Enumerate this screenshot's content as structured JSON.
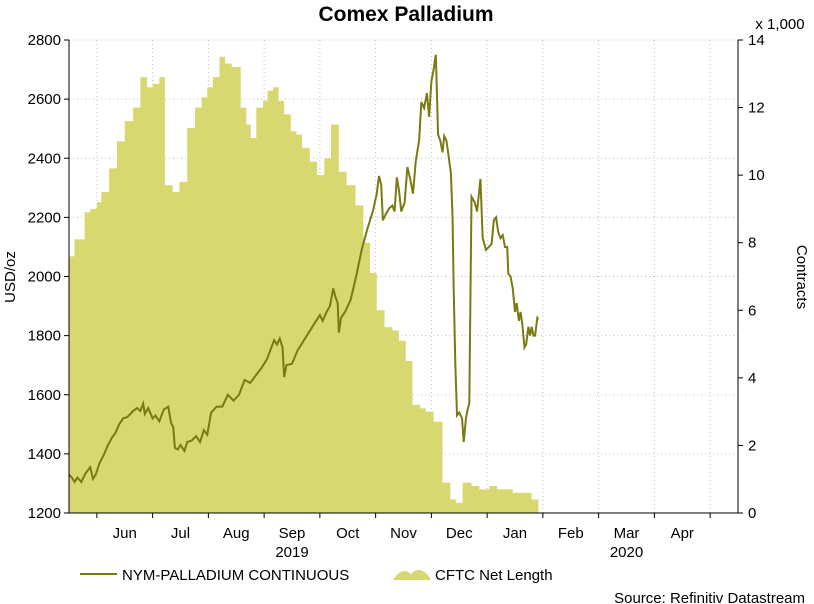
{
  "colors": {
    "area": "#d8d870",
    "line": "#7a7a12",
    "grid": "#bdbdbd",
    "axis": "#000000"
  },
  "chart_data": {
    "type": "line+area",
    "title": "Comex Palladium",
    "left_axis": {
      "label": "USD/oz",
      "range": [
        1200,
        2800
      ],
      "ticks": [
        1200,
        1400,
        1600,
        1800,
        2000,
        2200,
        2400,
        2600,
        2800
      ]
    },
    "right_axis": {
      "label": "Contracts",
      "multiplier_label": "x 1,000",
      "range": [
        0,
        14
      ],
      "ticks": [
        0,
        2,
        4,
        6,
        8,
        10,
        12,
        14
      ]
    },
    "x_axis": {
      "month_labels": [
        {
          "label": "Jun",
          "t": 2
        },
        {
          "label": "Jul",
          "t": 3
        },
        {
          "label": "Aug",
          "t": 4
        },
        {
          "label": "Sep",
          "t": 5
        },
        {
          "label": "Oct",
          "t": 6
        },
        {
          "label": "Nov",
          "t": 7
        },
        {
          "label": "Dec",
          "t": 8
        },
        {
          "label": "Jan",
          "t": 9
        },
        {
          "label": "Feb",
          "t": 10
        },
        {
          "label": "Mar",
          "t": 11
        },
        {
          "label": "Apr",
          "t": 12
        }
      ],
      "month_boundaries": [
        1.5,
        2.5,
        3.5,
        4.5,
        5.5,
        6.5,
        7.5,
        8.5,
        9.5,
        10.5,
        11.5,
        12.5
      ],
      "year_labels": [
        {
          "label": "2019",
          "t": 5
        },
        {
          "label": "2020",
          "t": 11
        }
      ],
      "range": [
        1.0,
        13.0
      ]
    },
    "series": [
      {
        "name": "NYM-PALLADIUM CONTINUOUS",
        "axis": "left",
        "style": "line",
        "points": [
          [
            1.0,
            1330
          ],
          [
            1.05,
            1320
          ],
          [
            1.1,
            1305
          ],
          [
            1.15,
            1320
          ],
          [
            1.22,
            1305
          ],
          [
            1.3,
            1335
          ],
          [
            1.38,
            1355
          ],
          [
            1.43,
            1315
          ],
          [
            1.48,
            1330
          ],
          [
            1.55,
            1370
          ],
          [
            1.62,
            1395
          ],
          [
            1.7,
            1430
          ],
          [
            1.77,
            1455
          ],
          [
            1.83,
            1470
          ],
          [
            1.9,
            1500
          ],
          [
            1.97,
            1520
          ],
          [
            2.05,
            1525
          ],
          [
            2.15,
            1545
          ],
          [
            2.22,
            1555
          ],
          [
            2.28,
            1545
          ],
          [
            2.33,
            1570
          ],
          [
            2.36,
            1535
          ],
          [
            2.42,
            1555
          ],
          [
            2.5,
            1520
          ],
          [
            2.55,
            1530
          ],
          [
            2.62,
            1510
          ],
          [
            2.7,
            1550
          ],
          [
            2.78,
            1560
          ],
          [
            2.83,
            1505
          ],
          [
            2.87,
            1490
          ],
          [
            2.9,
            1420
          ],
          [
            2.95,
            1415
          ],
          [
            3.0,
            1430
          ],
          [
            3.07,
            1410
          ],
          [
            3.12,
            1440
          ],
          [
            3.2,
            1445
          ],
          [
            3.28,
            1460
          ],
          [
            3.35,
            1440
          ],
          [
            3.42,
            1480
          ],
          [
            3.48,
            1465
          ],
          [
            3.55,
            1540
          ],
          [
            3.65,
            1560
          ],
          [
            3.75,
            1560
          ],
          [
            3.85,
            1600
          ],
          [
            3.95,
            1580
          ],
          [
            4.05,
            1600
          ],
          [
            4.15,
            1650
          ],
          [
            4.25,
            1640
          ],
          [
            4.35,
            1665
          ],
          [
            4.45,
            1690
          ],
          [
            4.55,
            1720
          ],
          [
            4.62,
            1755
          ],
          [
            4.68,
            1785
          ],
          [
            4.73,
            1770
          ],
          [
            4.78,
            1790
          ],
          [
            4.83,
            1760
          ],
          [
            4.86,
            1660
          ],
          [
            4.9,
            1700
          ],
          [
            5.0,
            1705
          ],
          [
            5.1,
            1750
          ],
          [
            5.2,
            1780
          ],
          [
            5.3,
            1810
          ],
          [
            5.4,
            1840
          ],
          [
            5.5,
            1870
          ],
          [
            5.55,
            1850
          ],
          [
            5.62,
            1880
          ],
          [
            5.68,
            1900
          ],
          [
            5.74,
            1960
          ],
          [
            5.78,
            1930
          ],
          [
            5.82,
            1910
          ],
          [
            5.84,
            1810
          ],
          [
            5.88,
            1860
          ],
          [
            5.95,
            1880
          ],
          [
            6.05,
            1920
          ],
          [
            6.15,
            2000
          ],
          [
            6.25,
            2090
          ],
          [
            6.35,
            2160
          ],
          [
            6.45,
            2220
          ],
          [
            6.52,
            2280
          ],
          [
            6.56,
            2340
          ],
          [
            6.6,
            2310
          ],
          [
            6.63,
            2190
          ],
          [
            6.68,
            2210
          ],
          [
            6.74,
            2230
          ],
          [
            6.8,
            2240
          ],
          [
            6.84,
            2220
          ],
          [
            6.88,
            2335
          ],
          [
            6.92,
            2290
          ],
          [
            6.96,
            2220
          ],
          [
            7.02,
            2250
          ],
          [
            7.07,
            2370
          ],
          [
            7.12,
            2330
          ],
          [
            7.17,
            2280
          ],
          [
            7.22,
            2390
          ],
          [
            7.28,
            2460
          ],
          [
            7.32,
            2590
          ],
          [
            7.37,
            2570
          ],
          [
            7.42,
            2620
          ],
          [
            7.46,
            2540
          ],
          [
            7.5,
            2660
          ],
          [
            7.54,
            2700
          ],
          [
            7.58,
            2750
          ],
          [
            7.62,
            2480
          ],
          [
            7.66,
            2460
          ],
          [
            7.7,
            2420
          ],
          [
            7.73,
            2475
          ],
          [
            7.77,
            2460
          ],
          [
            7.8,
            2420
          ],
          [
            7.85,
            2350
          ],
          [
            7.88,
            2200
          ],
          [
            7.9,
            1960
          ],
          [
            7.93,
            1700
          ],
          [
            7.96,
            1530
          ],
          [
            8.0,
            1540
          ],
          [
            8.05,
            1520
          ],
          [
            8.08,
            1440
          ],
          [
            8.12,
            1520
          ],
          [
            8.15,
            1550
          ],
          [
            8.18,
            1570
          ],
          [
            8.22,
            2270
          ],
          [
            8.28,
            2250
          ],
          [
            8.32,
            2220
          ],
          [
            8.38,
            2330
          ],
          [
            8.42,
            2130
          ],
          [
            8.48,
            2090
          ],
          [
            8.53,
            2100
          ],
          [
            8.58,
            2110
          ],
          [
            8.62,
            2190
          ],
          [
            8.66,
            2200
          ],
          [
            8.7,
            2150
          ],
          [
            8.74,
            2130
          ],
          [
            8.78,
            2140
          ],
          [
            8.82,
            2100
          ],
          [
            8.86,
            2100
          ],
          [
            8.88,
            2010
          ],
          [
            8.92,
            2000
          ],
          [
            8.96,
            1960
          ],
          [
            9.0,
            1880
          ],
          [
            9.03,
            1910
          ],
          [
            9.07,
            1850
          ],
          [
            9.1,
            1880
          ],
          [
            9.13,
            1840
          ],
          [
            9.17,
            1760
          ],
          [
            9.2,
            1770
          ],
          [
            9.24,
            1830
          ],
          [
            9.27,
            1800
          ],
          [
            9.3,
            1830
          ],
          [
            9.33,
            1800
          ],
          [
            9.36,
            1800
          ],
          [
            9.4,
            1860
          ],
          [
            9.42,
            1855
          ]
        ]
      },
      {
        "name": "CFTC Net Length",
        "axis": "right",
        "style": "area-step",
        "unit": "thousand contracts",
        "steps": [
          [
            1.0,
            7.6
          ],
          [
            1.1,
            8.1
          ],
          [
            1.22,
            8.1
          ],
          [
            1.28,
            8.9
          ],
          [
            1.38,
            9.0
          ],
          [
            1.5,
            9.2
          ],
          [
            1.58,
            9.5
          ],
          [
            1.72,
            10.2
          ],
          [
            1.86,
            11.0
          ],
          [
            2.0,
            11.6
          ],
          [
            2.15,
            12.0
          ],
          [
            2.28,
            12.9
          ],
          [
            2.4,
            12.6
          ],
          [
            2.5,
            12.7
          ],
          [
            2.62,
            12.9
          ],
          [
            2.72,
            9.7
          ],
          [
            2.86,
            9.5
          ],
          [
            2.98,
            9.8
          ],
          [
            3.12,
            11.4
          ],
          [
            3.26,
            12.0
          ],
          [
            3.38,
            12.3
          ],
          [
            3.48,
            12.6
          ],
          [
            3.58,
            12.9
          ],
          [
            3.7,
            13.5
          ],
          [
            3.8,
            13.3
          ],
          [
            3.92,
            13.2
          ],
          [
            4.08,
            12.0
          ],
          [
            4.18,
            11.5
          ],
          [
            4.26,
            11.1
          ],
          [
            4.36,
            12.0
          ],
          [
            4.48,
            12.2
          ],
          [
            4.56,
            12.5
          ],
          [
            4.66,
            12.6
          ],
          [
            4.76,
            12.2
          ],
          [
            4.86,
            11.8
          ],
          [
            4.98,
            11.3
          ],
          [
            5.08,
            11.2
          ],
          [
            5.18,
            10.8
          ],
          [
            5.32,
            10.4
          ],
          [
            5.45,
            10.0
          ],
          [
            5.58,
            10.5
          ],
          [
            5.7,
            11.5
          ],
          [
            5.84,
            10.1
          ],
          [
            5.98,
            9.7
          ],
          [
            6.14,
            9.1
          ],
          [
            6.28,
            8.0
          ],
          [
            6.4,
            7.1
          ],
          [
            6.52,
            6.0
          ],
          [
            6.66,
            5.5
          ],
          [
            6.8,
            5.4
          ],
          [
            6.92,
            5.1
          ],
          [
            7.04,
            4.5
          ],
          [
            7.16,
            3.2
          ],
          [
            7.3,
            3.1
          ],
          [
            7.4,
            3.0
          ],
          [
            7.54,
            2.7
          ],
          [
            7.7,
            0.9
          ],
          [
            7.84,
            0.4
          ],
          [
            7.94,
            0.3
          ],
          [
            8.06,
            0.9
          ],
          [
            8.22,
            0.8
          ],
          [
            8.36,
            0.7
          ],
          [
            8.54,
            0.8
          ],
          [
            8.68,
            0.7
          ],
          [
            8.82,
            0.7
          ],
          [
            8.96,
            0.6
          ],
          [
            9.16,
            0.6
          ],
          [
            9.3,
            0.4
          ],
          [
            9.42,
            0.4
          ]
        ]
      }
    ],
    "legend": {
      "placement": "bottom"
    },
    "source": "Source: Refinitiv Datastream"
  }
}
